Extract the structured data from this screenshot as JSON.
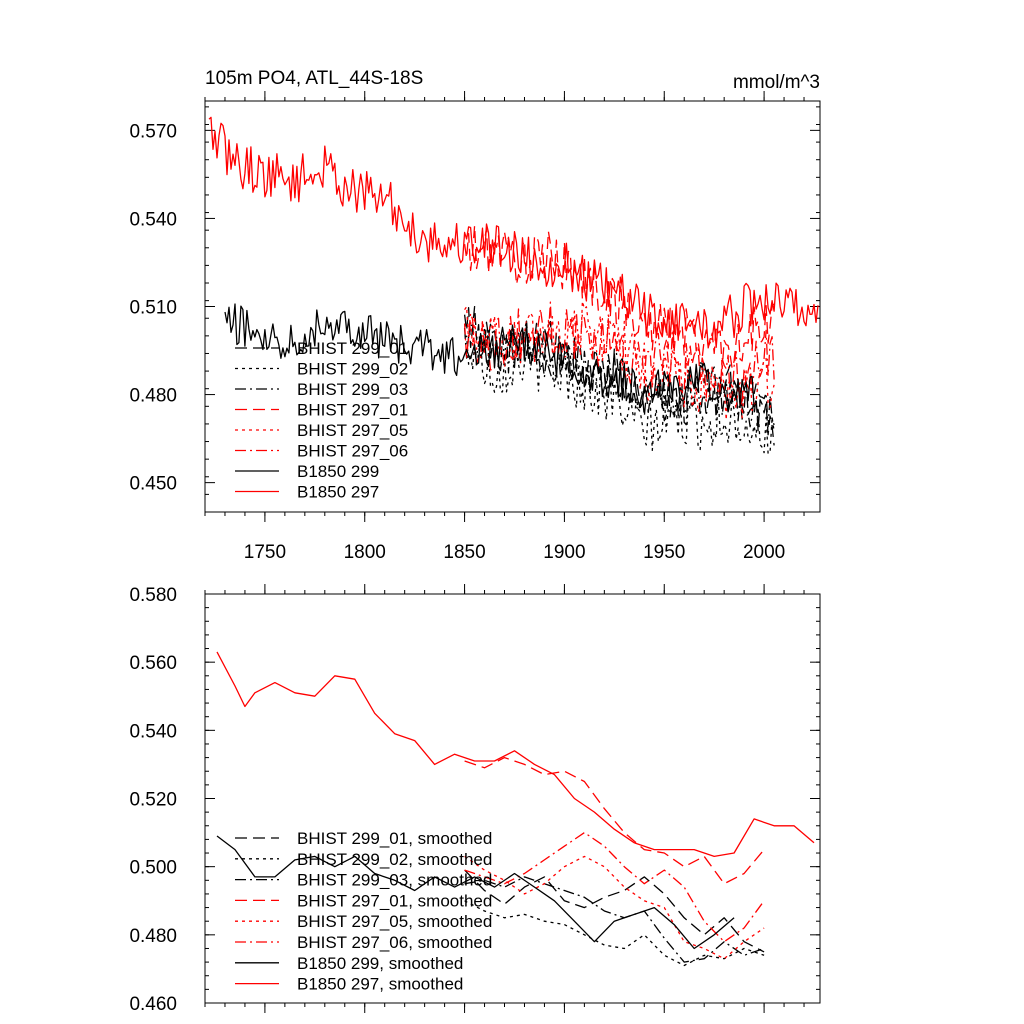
{
  "chart_data": [
    {
      "type": "line",
      "title": "105m PO4, ATL_44S-18S",
      "units": "mmol/m^3",
      "xlabel": "",
      "ylabel": "",
      "xlim": [
        1720,
        2028
      ],
      "ylim": [
        0.44,
        0.58
      ],
      "xticks": [
        1750,
        1800,
        1850,
        1900,
        1950,
        2000
      ],
      "xtick_labels": [
        "1750",
        "1800",
        "1850",
        "1900",
        "1950",
        "2000"
      ],
      "yticks": [
        0.45,
        0.48,
        0.51,
        0.54,
        0.57
      ],
      "ytick_labels": [
        "0.450",
        "0.480",
        "0.510",
        "0.540",
        "0.570"
      ],
      "legend_position": "bottom-left",
      "series": [
        {
          "name": "BHIST 299_01",
          "label": "BHIST 299_01",
          "color": "#000000",
          "dash": "long-dash",
          "x": [
            1850,
            1865,
            1880,
            1895,
            1910,
            1925,
            1940,
            1955,
            1970,
            1985,
            2005
          ],
          "y": [
            0.505,
            0.496,
            0.499,
            0.497,
            0.489,
            0.487,
            0.479,
            0.478,
            0.485,
            0.482,
            0.47
          ],
          "noise": 0.008
        },
        {
          "name": "BHIST 299_02",
          "label": "BHIST 299_02",
          "color": "#000000",
          "dash": "dotted",
          "x": [
            1850,
            1865,
            1880,
            1895,
            1910,
            1925,
            1940,
            1955,
            1970,
            1985,
            2005
          ],
          "y": [
            0.497,
            0.488,
            0.492,
            0.488,
            0.483,
            0.478,
            0.468,
            0.472,
            0.47,
            0.472,
            0.465
          ],
          "noise": 0.009
        },
        {
          "name": "BHIST 299_03",
          "label": "BHIST 299_03",
          "color": "#000000",
          "dash": "dash-dot",
          "x": [
            1850,
            1865,
            1880,
            1895,
            1910,
            1925,
            1940,
            1955,
            1970,
            1985,
            2005
          ],
          "y": [
            0.5,
            0.494,
            0.496,
            0.492,
            0.487,
            0.49,
            0.48,
            0.476,
            0.48,
            0.478,
            0.474
          ],
          "noise": 0.008
        },
        {
          "name": "BHIST 297_01",
          "label": "BHIST 297_01",
          "color": "#ff0000",
          "dash": "long-dash",
          "x": [
            1850,
            1865,
            1880,
            1895,
            1910,
            1925,
            1940,
            1955,
            1970,
            1985,
            2005
          ],
          "y": [
            0.528,
            0.53,
            0.525,
            0.527,
            0.519,
            0.513,
            0.503,
            0.503,
            0.498,
            0.497,
            0.505
          ],
          "noise": 0.009
        },
        {
          "name": "BHIST 297_05",
          "label": "BHIST 297_05",
          "color": "#ff0000",
          "dash": "dotted",
          "x": [
            1850,
            1865,
            1880,
            1895,
            1910,
            1925,
            1940,
            1955,
            1970,
            1985,
            2005
          ],
          "y": [
            0.505,
            0.5,
            0.498,
            0.502,
            0.502,
            0.5,
            0.488,
            0.487,
            0.48,
            0.48,
            0.485
          ],
          "noise": 0.01
        },
        {
          "name": "BHIST 297_06",
          "label": "BHIST 297_06",
          "color": "#ff0000",
          "dash": "dash-dot",
          "x": [
            1850,
            1865,
            1880,
            1895,
            1910,
            1925,
            1940,
            1955,
            1970,
            1985,
            2005
          ],
          "y": [
            0.5,
            0.498,
            0.5,
            0.503,
            0.5,
            0.498,
            0.49,
            0.492,
            0.488,
            0.485,
            0.495
          ],
          "noise": 0.01
        },
        {
          "name": "B1850 299",
          "label": "B1850 299",
          "color": "#000000",
          "dash": "solid",
          "x": [
            1730,
            1745,
            1760,
            1775,
            1790,
            1805,
            1820,
            1835,
            1850,
            1865,
            1880,
            1895,
            1910,
            1925,
            1940,
            1955,
            1970,
            1985,
            1995
          ],
          "y": [
            0.505,
            0.502,
            0.498,
            0.503,
            0.505,
            0.5,
            0.496,
            0.495,
            0.492,
            0.496,
            0.498,
            0.493,
            0.488,
            0.485,
            0.482,
            0.483,
            0.484,
            0.48,
            0.482
          ],
          "noise": 0.007
        },
        {
          "name": "B1850 297",
          "label": "B1850 297",
          "color": "#ff0000",
          "dash": "solid",
          "x": [
            1722,
            1735,
            1750,
            1765,
            1780,
            1795,
            1810,
            1825,
            1840,
            1855,
            1870,
            1885,
            1900,
            1915,
            1930,
            1945,
            1960,
            1975,
            1990,
            2005,
            2015,
            2027
          ],
          "y": [
            0.57,
            0.559,
            0.555,
            0.553,
            0.557,
            0.549,
            0.547,
            0.535,
            0.531,
            0.532,
            0.531,
            0.525,
            0.524,
            0.518,
            0.513,
            0.506,
            0.505,
            0.502,
            0.51,
            0.512,
            0.51,
            0.508
          ],
          "noise": 0.008
        }
      ]
    },
    {
      "type": "line",
      "title": "",
      "xlabel": "",
      "ylabel": "",
      "xlim": [
        1720,
        2028
      ],
      "ylim": [
        0.46,
        0.58
      ],
      "xticks": [
        1750,
        1800,
        1850,
        1900,
        1950,
        2000
      ],
      "xtick_labels": [],
      "yticks": [
        0.46,
        0.48,
        0.5,
        0.52,
        0.54,
        0.56,
        0.58
      ],
      "ytick_labels": [
        "0.460",
        "0.480",
        "0.500",
        "0.520",
        "0.540",
        "0.560",
        "0.580"
      ],
      "legend_position": "bottom-left",
      "series": [
        {
          "name": "BHIST 299_01, smoothed",
          "label": "BHIST 299_01, smoothed",
          "color": "#000000",
          "dash": "long-dash",
          "x": [
            1850,
            1860,
            1870,
            1880,
            1890,
            1900,
            1910,
            1920,
            1930,
            1940,
            1950,
            1960,
            1970,
            1980,
            1990,
            2000
          ],
          "y": [
            0.499,
            0.493,
            0.489,
            0.494,
            0.497,
            0.49,
            0.488,
            0.491,
            0.493,
            0.497,
            0.492,
            0.485,
            0.48,
            0.485,
            0.478,
            0.475
          ]
        },
        {
          "name": "BHIST 299_02, smoothed",
          "label": "BHIST 299_02, smoothed",
          "color": "#000000",
          "dash": "dotted",
          "x": [
            1850,
            1860,
            1870,
            1880,
            1890,
            1900,
            1910,
            1920,
            1930,
            1940,
            1950,
            1960,
            1970,
            1980,
            1990,
            2000
          ],
          "y": [
            0.49,
            0.487,
            0.485,
            0.486,
            0.484,
            0.483,
            0.48,
            0.477,
            0.476,
            0.48,
            0.474,
            0.471,
            0.474,
            0.473,
            0.476,
            0.474
          ]
        },
        {
          "name": "BHIST 299_03, smoothed",
          "label": "BHIST 299_03, smoothed",
          "color": "#000000",
          "dash": "dash-dot",
          "x": [
            1850,
            1860,
            1870,
            1880,
            1890,
            1900,
            1910,
            1920,
            1930,
            1940,
            1950,
            1960,
            1970,
            1980,
            1990,
            2000
          ],
          "y": [
            0.495,
            0.496,
            0.494,
            0.497,
            0.495,
            0.493,
            0.491,
            0.487,
            0.485,
            0.487,
            0.479,
            0.472,
            0.473,
            0.478,
            0.474,
            0.476
          ]
        },
        {
          "name": "BHIST 297_01, smoothed",
          "label": "BHIST 297_01, smoothed",
          "color": "#ff0000",
          "dash": "long-dash",
          "x": [
            1850,
            1860,
            1870,
            1880,
            1890,
            1900,
            1910,
            1920,
            1930,
            1940,
            1950,
            1960,
            1970,
            1980,
            1990,
            2000
          ],
          "y": [
            0.531,
            0.529,
            0.532,
            0.53,
            0.527,
            0.528,
            0.525,
            0.517,
            0.51,
            0.505,
            0.504,
            0.5,
            0.503,
            0.495,
            0.498,
            0.505
          ]
        },
        {
          "name": "BHIST 297_05, smoothed",
          "label": "BHIST 297_05, smoothed",
          "color": "#ff0000",
          "dash": "dotted",
          "x": [
            1850,
            1860,
            1870,
            1880,
            1890,
            1900,
            1910,
            1920,
            1930,
            1940,
            1950,
            1960,
            1970,
            1980,
            1990,
            2000
          ],
          "y": [
            0.503,
            0.499,
            0.496,
            0.492,
            0.495,
            0.5,
            0.503,
            0.5,
            0.494,
            0.49,
            0.488,
            0.478,
            0.476,
            0.473,
            0.478,
            0.482
          ]
        },
        {
          "name": "BHIST 297_06, smoothed",
          "label": "BHIST 297_06, smoothed",
          "color": "#ff0000",
          "dash": "dash-dot",
          "x": [
            1850,
            1860,
            1870,
            1880,
            1890,
            1900,
            1910,
            1920,
            1930,
            1940,
            1950,
            1960,
            1970,
            1980,
            1990,
            2000
          ],
          "y": [
            0.499,
            0.497,
            0.495,
            0.498,
            0.502,
            0.506,
            0.51,
            0.506,
            0.5,
            0.495,
            0.499,
            0.494,
            0.484,
            0.478,
            0.482,
            0.49
          ]
        },
        {
          "name": "B1850 299, smoothed",
          "label": "B1850 299, smoothed",
          "color": "#000000",
          "dash": "solid",
          "x": [
            1726,
            1735,
            1745,
            1755,
            1765,
            1775,
            1785,
            1795,
            1805,
            1815,
            1825,
            1835,
            1845,
            1855,
            1865,
            1875,
            1885,
            1895,
            1905,
            1915,
            1925,
            1935,
            1945,
            1955,
            1965,
            1975,
            1985
          ],
          "y": [
            0.509,
            0.505,
            0.497,
            0.497,
            0.502,
            0.503,
            0.5,
            0.503,
            0.498,
            0.496,
            0.493,
            0.497,
            0.494,
            0.497,
            0.494,
            0.498,
            0.494,
            0.49,
            0.484,
            0.478,
            0.484,
            0.486,
            0.488,
            0.483,
            0.476,
            0.48,
            0.485
          ]
        },
        {
          "name": "B1850 297, smoothed",
          "label": "B1850 297, smoothed",
          "color": "#ff0000",
          "dash": "solid",
          "x": [
            1726,
            1735,
            1740,
            1745,
            1755,
            1765,
            1775,
            1785,
            1795,
            1805,
            1815,
            1825,
            1835,
            1845,
            1855,
            1865,
            1875,
            1885,
            1895,
            1905,
            1915,
            1925,
            1935,
            1945,
            1955,
            1965,
            1975,
            1985,
            1995,
            2005,
            2015,
            2025
          ],
          "y": [
            0.563,
            0.553,
            0.547,
            0.551,
            0.554,
            0.551,
            0.55,
            0.556,
            0.555,
            0.545,
            0.539,
            0.537,
            0.53,
            0.533,
            0.531,
            0.531,
            0.534,
            0.53,
            0.527,
            0.52,
            0.516,
            0.511,
            0.507,
            0.505,
            0.505,
            0.505,
            0.503,
            0.504,
            0.514,
            0.512,
            0.512,
            0.507
          ]
        }
      ]
    }
  ]
}
